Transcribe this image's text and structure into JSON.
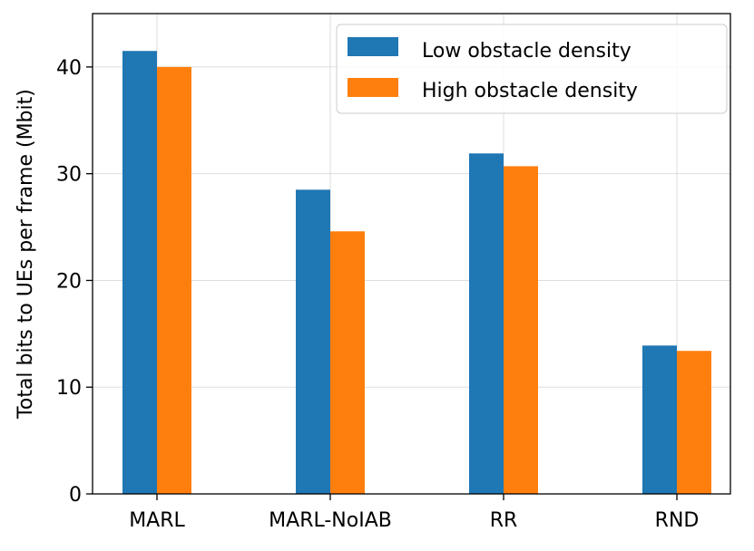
{
  "chart_data": {
    "type": "bar",
    "title": "",
    "xlabel": "",
    "ylabel": "Total bits to UEs per frame (Mbit)",
    "categories": [
      "MARL",
      "MARL-NoIAB",
      "RR",
      "RND"
    ],
    "series": [
      {
        "name": "Low obstacle density",
        "color": "#1f77b4",
        "values": [
          41.5,
          28.5,
          31.9,
          13.9
        ]
      },
      {
        "name": "High obstacle density",
        "color": "#ff7f0e",
        "values": [
          40.0,
          24.6,
          30.7,
          13.4
        ]
      }
    ],
    "ylim": [
      0,
      45
    ],
    "yticks": [
      0,
      10,
      20,
      30,
      40
    ],
    "grid": true,
    "legend_position": "top-right"
  }
}
